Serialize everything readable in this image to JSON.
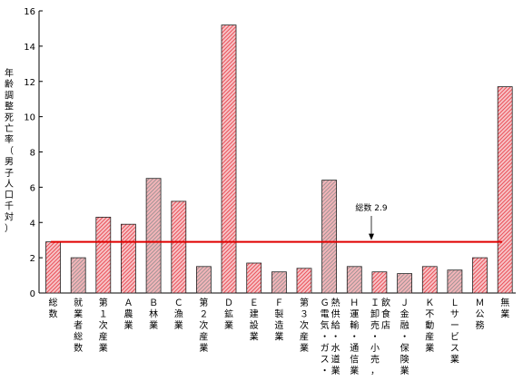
{
  "chart_data": {
    "type": "bar",
    "ylabel": "年齢調整死亡率（男子人口千対）",
    "ylim": [
      0,
      16
    ],
    "yticks": [
      0,
      2,
      4,
      6,
      8,
      10,
      12,
      14,
      16
    ],
    "grid": false,
    "legend": "none",
    "categories": [
      "総数",
      "就業者総数",
      "第１次産業",
      "Ａ農業",
      "Ｂ林業",
      "Ｃ漁業",
      "第２次産業",
      "Ｄ鉱業",
      "Ｅ建設業",
      "Ｆ製造業",
      "第３次産業",
      "Ｇ電気・ガス・熱供給・水道業",
      "Ｈ運輸・通信業",
      "Ｉ卸売・小売業，飲食店",
      "Ｊ金融・保険業",
      "Ｋ不動産業",
      "Ｌサービス業",
      "Ｍ公務",
      "無業"
    ],
    "category_labels": [
      [
        "総",
        "数"
      ],
      [
        "就",
        "業",
        "者",
        "総",
        "数"
      ],
      [
        "第",
        "１",
        "次",
        "産",
        "業"
      ],
      [
        "Ａ",
        "農",
        "業"
      ],
      [
        "Ｂ",
        "林",
        "業"
      ],
      [
        "Ｃ",
        "漁",
        "業"
      ],
      [
        "第",
        "２",
        "次",
        "産",
        "業"
      ],
      [
        "Ｄ",
        "鉱",
        "業"
      ],
      [
        "Ｅ",
        "建",
        "設",
        "業"
      ],
      [
        "Ｆ",
        "製",
        "造",
        "業"
      ],
      [
        "第",
        "３",
        "次",
        "産",
        "業"
      ],
      [
        "Ｇ",
        "電",
        "気",
        "・",
        "ガ",
        "ス",
        "・"
      ],
      [
        "Ｈ",
        "運",
        "輸",
        "・",
        "通",
        "信",
        "業"
      ],
      [
        "Ｉ",
        "卸",
        "売",
        "・",
        "小",
        "売",
        "，"
      ],
      [
        "Ｊ",
        "金",
        "融",
        "・",
        "保",
        "険",
        "業"
      ],
      [
        "Ｋ",
        "不",
        "動",
        "産",
        "業"
      ],
      [
        "Ｌ",
        "サ",
        "ー",
        "ビ",
        "ス",
        "業"
      ],
      [
        "Ｍ",
        "公",
        "務"
      ],
      [
        "無",
        "業"
      ]
    ],
    "category_labels_2nd_column": {
      "11": [
        "熱",
        "供",
        "給",
        "・",
        "水",
        "道",
        "業"
      ],
      "13": [
        "飲",
        "食",
        "店"
      ]
    },
    "values": [
      2.9,
      2.0,
      4.3,
      3.9,
      6.5,
      5.2,
      1.5,
      15.2,
      1.7,
      1.2,
      1.4,
      6.4,
      1.5,
      1.2,
      1.1,
      1.5,
      1.3,
      2.0,
      11.7
    ],
    "bar_style": [
      "red",
      "gray",
      "red",
      "red",
      "gray",
      "red",
      "gray",
      "red",
      "red",
      "gray",
      "red",
      "gray",
      "gray",
      "red",
      "gray",
      "red",
      "gray",
      "red",
      "red"
    ],
    "reference_line": {
      "value": 2.9,
      "label": "総数 2.9"
    },
    "colors": {
      "bar_fill": "#f4b8bc",
      "bar_hatch_red": "#e8323c",
      "bar_hatch_gray": "#8c8c8c",
      "bar_edge": "#222222",
      "reference_line": "#e00000",
      "axis": "#000000"
    }
  }
}
